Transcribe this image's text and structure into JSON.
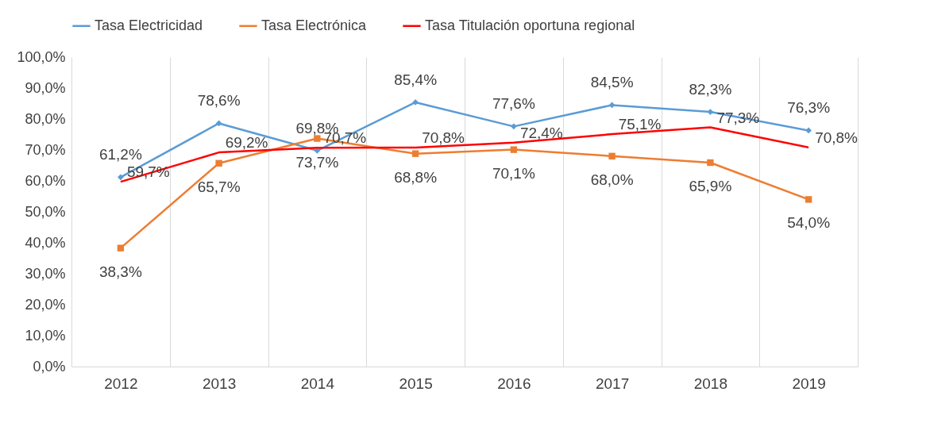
{
  "chart_data": {
    "type": "line",
    "categories": [
      "2012",
      "2013",
      "2014",
      "2015",
      "2016",
      "2017",
      "2018",
      "2019"
    ],
    "series": [
      {
        "name": "Tasa Electricidad",
        "color": "#5b9bd5",
        "marker": "diamond",
        "values": [
          61.2,
          78.6,
          69.8,
          85.4,
          77.6,
          84.5,
          82.3,
          76.3
        ],
        "value_labels": [
          "61,2%",
          "78,6%",
          "69,8%",
          "85,4%",
          "77,6%",
          "84,5%",
          "82,3%",
          "76,3%"
        ]
      },
      {
        "name": "Tasa Electrónica",
        "color": "#ed7d31",
        "marker": "square",
        "values": [
          38.3,
          65.7,
          73.7,
          68.8,
          70.1,
          68.0,
          65.9,
          54.0
        ],
        "value_labels": [
          "38,3%",
          "65,7%",
          "73,7%",
          "68,8%",
          "70,1%",
          "68,0%",
          "65,9%",
          "54,0%"
        ]
      },
      {
        "name": "Tasa Titulación oportuna regional",
        "color": "#ff0000",
        "marker": "none",
        "values": [
          59.7,
          69.2,
          70.7,
          70.8,
          72.4,
          75.1,
          77.3,
          70.8
        ],
        "value_labels": [
          "59,7%",
          "69,2%",
          "70,7%",
          "70,8%",
          "72,4%",
          "75,1%",
          "77,3%",
          "70,8%"
        ]
      }
    ],
    "ylim": [
      0,
      100
    ],
    "yticks": [
      {
        "value": 0,
        "label": "0,0%"
      },
      {
        "value": 10,
        "label": "10,0%"
      },
      {
        "value": 20,
        "label": "20,0%"
      },
      {
        "value": 30,
        "label": "30,0%"
      },
      {
        "value": 40,
        "label": "40,0%"
      },
      {
        "value": 50,
        "label": "50,0%"
      },
      {
        "value": 60,
        "label": "60,0%"
      },
      {
        "value": 70,
        "label": "70,0%"
      },
      {
        "value": 80,
        "label": "80,0%"
      },
      {
        "value": 90,
        "label": "90,0%"
      },
      {
        "value": 100,
        "label": "100,0%"
      }
    ],
    "grid": "x",
    "legend": "top"
  }
}
